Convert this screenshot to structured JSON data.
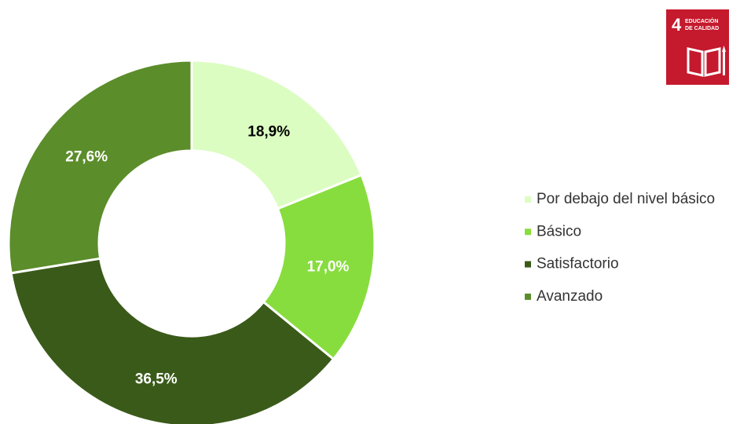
{
  "chart_data": {
    "type": "donut",
    "categories": [
      "Por debajo del nivel básico",
      "Básico",
      "Satisfactorio",
      "Avanzado"
    ],
    "values": [
      18.9,
      17.0,
      36.5,
      27.6
    ],
    "value_labels": [
      "18,9%",
      "17,0%",
      "36,5%",
      "27,6%"
    ],
    "colors": [
      "#dcfdc2",
      "#87dd3d",
      "#3a5a19",
      "#5b8d2a"
    ],
    "label_colors": [
      "#000000",
      "#ffffff",
      "#ffffff",
      "#ffffff"
    ],
    "legend": "right"
  },
  "badge": {
    "number": 4,
    "line1": "EDUCACIÓN",
    "line2": "DE CALIDAD",
    "color": "#c5192d"
  }
}
